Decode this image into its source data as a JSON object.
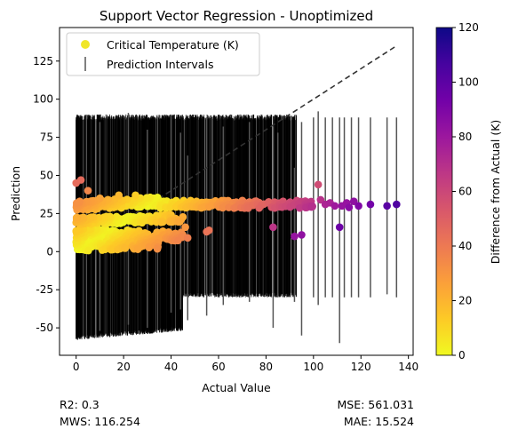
{
  "chart_data": {
    "type": "scatter",
    "title": "Support Vector Regression - Unoptimized",
    "xlabel": "Actual Value",
    "ylabel": "Prediction",
    "xlim": [
      -7,
      142
    ],
    "ylim": [
      -68,
      147
    ],
    "xticks": [
      0,
      20,
      40,
      60,
      80,
      100,
      120,
      140
    ],
    "yticks": [
      -50,
      -25,
      0,
      25,
      50,
      75,
      100,
      125
    ],
    "grid": false,
    "legend": {
      "placement": "top-left",
      "entries": [
        {
          "label": "Critical Temperature (K)",
          "marker": "point",
          "color": "#f0e628"
        },
        {
          "label": "Prediction Intervals",
          "marker": "errorbar",
          "color": "#555555"
        }
      ]
    },
    "colorbar": {
      "label": "Difference from Actual (K)",
      "range": [
        0,
        120
      ],
      "ticks": [
        0,
        20,
        40,
        60,
        80,
        100,
        120
      ],
      "colormap": [
        "#f0f921",
        "#fdca26",
        "#fb9f3a",
        "#ed7953",
        "#d8576b",
        "#bd3786",
        "#9c179e",
        "#7201a8",
        "#46039f",
        "#0d0887"
      ]
    },
    "reference_line": {
      "style": "dashed",
      "color": "#333333",
      "from": [
        0,
        0
      ],
      "to": [
        135,
        135
      ]
    },
    "series": [
      {
        "label": "Critical Temperature (K)",
        "bands": [
          {
            "x": [
              0,
              35
            ],
            "y_start": 30,
            "y_end": 33,
            "spread": 3
          },
          {
            "x": [
              0,
              45
            ],
            "y_start": 20,
            "y_end": 22,
            "spread": 2.5
          },
          {
            "x": [
              0,
              45
            ],
            "y_start": 12,
            "y_end": 10,
            "spread": 3
          },
          {
            "x": [
              0,
              35
            ],
            "y_start": 4,
            "y_end": 5,
            "spread": 3.5
          },
          {
            "x": [
              35,
              100
            ],
            "y_start": 31,
            "y_end": 31,
            "spread": 2.5
          }
        ],
        "points": [
          {
            "x": 0,
            "y": 45
          },
          {
            "x": 2,
            "y": 47
          },
          {
            "x": 5,
            "y": 40
          },
          {
            "x": 10,
            "y": 35
          },
          {
            "x": 18,
            "y": 37
          },
          {
            "x": 25,
            "y": 37
          },
          {
            "x": 55,
            "y": 13
          },
          {
            "x": 56,
            "y": 14
          },
          {
            "x": 47,
            "y": 9
          },
          {
            "x": 46,
            "y": 16
          },
          {
            "x": 83,
            "y": 16
          },
          {
            "x": 92,
            "y": 10
          },
          {
            "x": 95,
            "y": 11
          },
          {
            "x": 102,
            "y": 44
          },
          {
            "x": 103,
            "y": 34
          },
          {
            "x": 105,
            "y": 31
          },
          {
            "x": 107,
            "y": 32
          },
          {
            "x": 109,
            "y": 30
          },
          {
            "x": 111,
            "y": 16
          },
          {
            "x": 112,
            "y": 30
          },
          {
            "x": 114,
            "y": 32
          },
          {
            "x": 115,
            "y": 29
          },
          {
            "x": 117,
            "y": 33
          },
          {
            "x": 119,
            "y": 30
          },
          {
            "x": 124,
            "y": 31
          },
          {
            "x": 131,
            "y": 30
          },
          {
            "x": 135,
            "y": 31
          }
        ]
      },
      {
        "label": "Prediction Intervals",
        "bars": [
          {
            "x": [
              0,
              45
            ],
            "upper": 90,
            "lower_start": -58,
            "lower_end": -52
          },
          {
            "x": [
              45,
              93
            ],
            "upper": 90,
            "lower": -30
          }
        ],
        "outliers": [
          {
            "x": 10,
            "low": -52,
            "high": 85
          },
          {
            "x": 22,
            "low": -48,
            "high": 91
          },
          {
            "x": 30,
            "low": -50,
            "high": 80
          },
          {
            "x": 40,
            "low": -40,
            "high": 90
          },
          {
            "x": 44,
            "low": -38,
            "high": 78
          },
          {
            "x": 47,
            "low": -45,
            "high": 63
          },
          {
            "x": 55,
            "low": -42,
            "high": 88
          },
          {
            "x": 62,
            "low": -35,
            "high": 82
          },
          {
            "x": 73,
            "low": -33,
            "high": 85
          },
          {
            "x": 83,
            "low": -50,
            "high": 82
          },
          {
            "x": 85,
            "low": -30,
            "high": 78
          },
          {
            "x": 92,
            "low": -33,
            "high": 55
          },
          {
            "x": 95,
            "low": -55,
            "high": 85
          },
          {
            "x": 100,
            "low": -30,
            "high": 88
          },
          {
            "x": 102,
            "low": -35,
            "high": 92
          },
          {
            "x": 105,
            "low": -30,
            "high": 88
          },
          {
            "x": 108,
            "low": -30,
            "high": 88
          },
          {
            "x": 111,
            "low": -60,
            "high": 88
          },
          {
            "x": 113,
            "low": -30,
            "high": 88
          },
          {
            "x": 116,
            "low": -30,
            "high": 88
          },
          {
            "x": 119,
            "low": -30,
            "high": 88
          },
          {
            "x": 124,
            "low": -30,
            "high": 88
          },
          {
            "x": 131,
            "low": -28,
            "high": 88
          },
          {
            "x": 135,
            "low": -30,
            "high": 88
          }
        ]
      }
    ]
  },
  "stats": {
    "r2": "R2: 0.3",
    "mws": "MWS: 116.254",
    "mse": "MSE: 561.031",
    "mae": "MAE: 15.524"
  }
}
